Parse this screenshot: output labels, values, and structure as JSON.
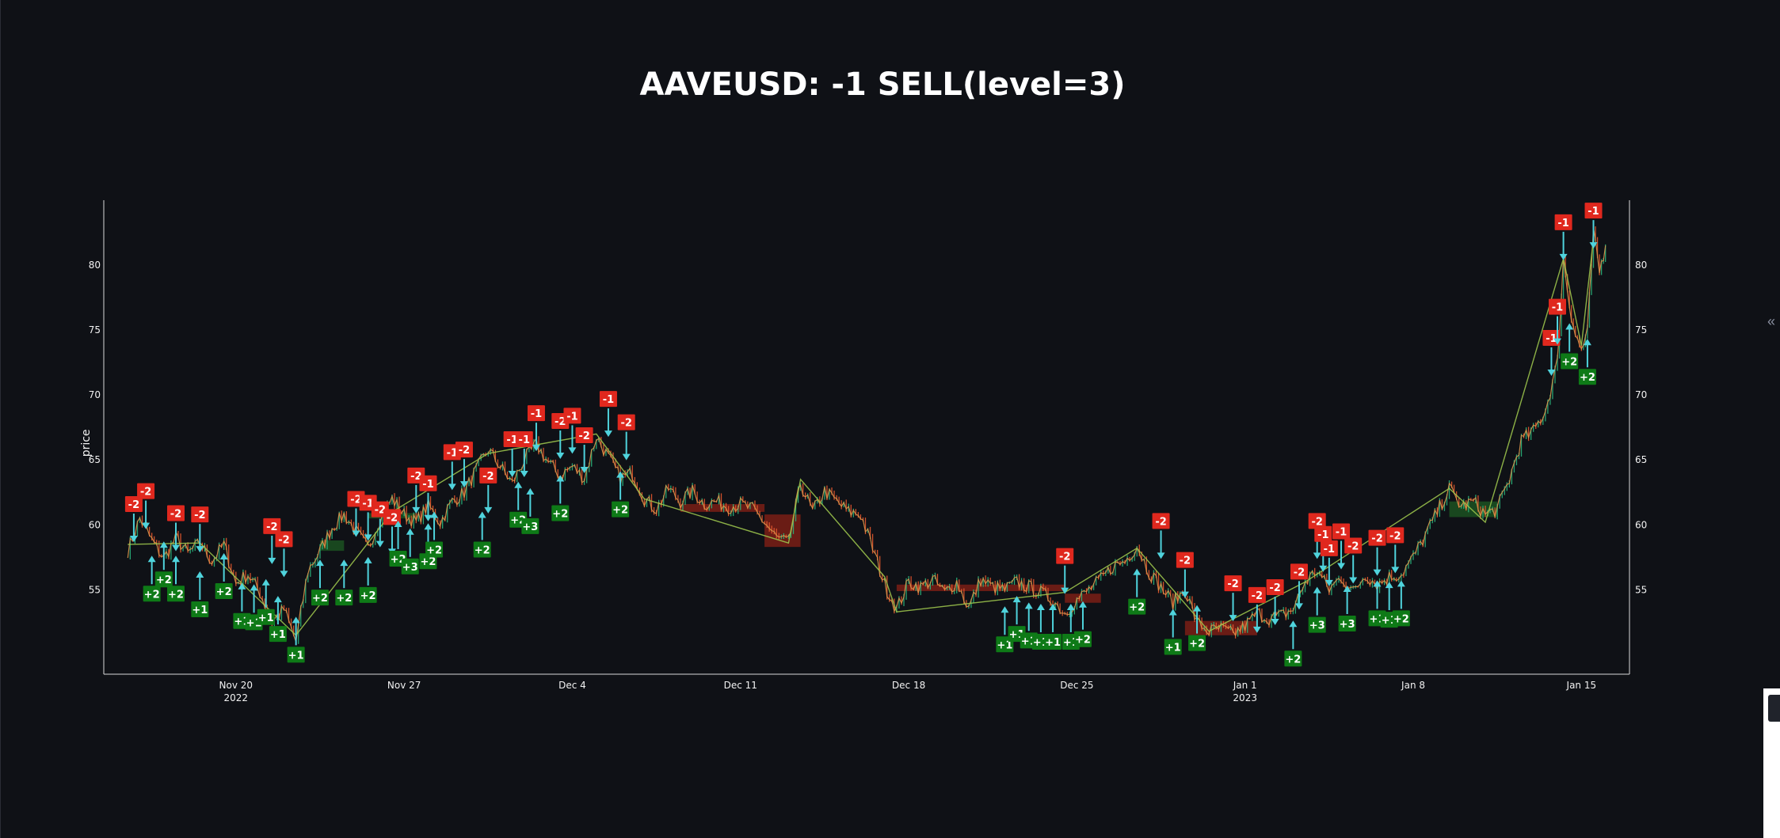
{
  "chart_data": {
    "type": "line",
    "title": "AAVEUSD: -1 SELL(level=3)",
    "ylabel": "price",
    "ylim": [
      48.5,
      85
    ],
    "y_ticks": [
      55,
      60,
      65,
      70,
      75,
      80
    ],
    "x_range": [
      "2022-11-14T12:00",
      "2023-01-17T00:00"
    ],
    "x_ticks": [
      {
        "date": "2022-11-20",
        "label": "Nov 20",
        "year": "2022"
      },
      {
        "date": "2022-11-27",
        "label": "Nov 27",
        "year": ""
      },
      {
        "date": "2022-12-04",
        "label": "Dec 4",
        "year": ""
      },
      {
        "date": "2022-12-11",
        "label": "Dec 11",
        "year": ""
      },
      {
        "date": "2022-12-18",
        "label": "Dec 18",
        "year": ""
      },
      {
        "date": "2022-12-25",
        "label": "Dec 25",
        "year": ""
      },
      {
        "date": "2023-01-01",
        "label": "Jan 1",
        "year": "2023"
      },
      {
        "date": "2023-01-08",
        "label": "Jan 8",
        "year": ""
      },
      {
        "date": "2023-01-15",
        "label": "Jan 15",
        "year": ""
      }
    ],
    "colors": {
      "up": "#2ab27b",
      "down": "#e4572e",
      "price_line": "#d9964b",
      "trend_line": "#9ac24b",
      "arrow": "#4fd3dc",
      "sell": "#e0281e",
      "buy": "#0e7a17",
      "zone_red": "#8a2015",
      "zone_green": "#1d5a23"
    },
    "price": [
      [
        "2022-11-15T12:00",
        58.0
      ],
      [
        "2022-11-16T00:00",
        60.5
      ],
      [
        "2022-11-16T12:00",
        58.8
      ],
      [
        "2022-11-17T00:00",
        57.4
      ],
      [
        "2022-11-17T12:00",
        59.0
      ],
      [
        "2022-11-18T00:00",
        57.8
      ],
      [
        "2022-11-18T12:00",
        58.6
      ],
      [
        "2022-11-19T00:00",
        57.2
      ],
      [
        "2022-11-19T12:00",
        58.5
      ],
      [
        "2022-11-20T00:00",
        55.5
      ],
      [
        "2022-11-20T12:00",
        56.2
      ],
      [
        "2022-11-21T00:00",
        54.8
      ],
      [
        "2022-11-21T12:00",
        52.5
      ],
      [
        "2022-11-22T00:00",
        53.5
      ],
      [
        "2022-11-22T12:00",
        51.0
      ],
      [
        "2022-11-23T00:00",
        56.5
      ],
      [
        "2022-11-23T12:00",
        58.0
      ],
      [
        "2022-11-24T00:00",
        59.8
      ],
      [
        "2022-11-24T12:00",
        60.8
      ],
      [
        "2022-11-25T00:00",
        59.5
      ],
      [
        "2022-11-25T12:00",
        58.2
      ],
      [
        "2022-11-26T00:00",
        60.5
      ],
      [
        "2022-11-26T12:00",
        62.0
      ],
      [
        "2022-11-27T00:00",
        60.8
      ],
      [
        "2022-11-27T12:00",
        60.2
      ],
      [
        "2022-11-28T00:00",
        61.5
      ],
      [
        "2022-11-28T12:00",
        60.2
      ],
      [
        "2022-11-29T00:00",
        61.8
      ],
      [
        "2022-11-29T12:00",
        62.5
      ],
      [
        "2022-11-30T00:00",
        64.2
      ],
      [
        "2022-11-30T12:00",
        65.8
      ],
      [
        "2022-12-01T00:00",
        64.5
      ],
      [
        "2022-12-01T12:00",
        63.2
      ],
      [
        "2022-12-02T00:00",
        65.0
      ],
      [
        "2022-12-02T12:00",
        66.2
      ],
      [
        "2022-12-03T00:00",
        64.8
      ],
      [
        "2022-12-03T12:00",
        63.8
      ],
      [
        "2022-12-04T00:00",
        64.5
      ],
      [
        "2022-12-04T12:00",
        63.6
      ],
      [
        "2022-12-05T00:00",
        66.8
      ],
      [
        "2022-12-05T12:00",
        65.2
      ],
      [
        "2022-12-06T00:00",
        63.6
      ],
      [
        "2022-12-06T12:00",
        64.0
      ],
      [
        "2022-12-07T00:00",
        62.0
      ],
      [
        "2022-12-07T12:00",
        61.2
      ],
      [
        "2022-12-08T00:00",
        62.8
      ],
      [
        "2022-12-08T12:00",
        61.8
      ],
      [
        "2022-12-09T00:00",
        62.6
      ],
      [
        "2022-12-09T12:00",
        61.6
      ],
      [
        "2022-12-10T00:00",
        61.8
      ],
      [
        "2022-12-10T12:00",
        61.4
      ],
      [
        "2022-12-11T00:00",
        61.6
      ],
      [
        "2022-12-11T12:00",
        61.2
      ],
      [
        "2022-12-12T00:00",
        60.2
      ],
      [
        "2022-12-12T12:00",
        59.0
      ],
      [
        "2022-12-13T00:00",
        58.6
      ],
      [
        "2022-12-13T12:00",
        63.2
      ],
      [
        "2022-12-14T00:00",
        61.0
      ],
      [
        "2022-12-14T12:00",
        62.6
      ],
      [
        "2022-12-15T00:00",
        61.8
      ],
      [
        "2022-12-15T12:00",
        61.0
      ],
      [
        "2022-12-16T00:00",
        60.8
      ],
      [
        "2022-12-16T12:00",
        58.2
      ],
      [
        "2022-12-17T00:00",
        55.4
      ],
      [
        "2022-12-17T12:00",
        53.5
      ],
      [
        "2022-12-18T00:00",
        55.6
      ],
      [
        "2022-12-18T12:00",
        55.2
      ],
      [
        "2022-12-19T00:00",
        55.8
      ],
      [
        "2022-12-19T12:00",
        54.8
      ],
      [
        "2022-12-20T00:00",
        55.6
      ],
      [
        "2022-12-20T12:00",
        53.6
      ],
      [
        "2022-12-21T00:00",
        55.8
      ],
      [
        "2022-12-21T12:00",
        55.2
      ],
      [
        "2022-12-22T00:00",
        55.0
      ],
      [
        "2022-12-22T12:00",
        55.6
      ],
      [
        "2022-12-23T00:00",
        55.2
      ],
      [
        "2022-12-23T12:00",
        54.8
      ],
      [
        "2022-12-24T00:00",
        54.2
      ],
      [
        "2022-12-24T12:00",
        53.2
      ],
      [
        "2022-12-25T00:00",
        54.2
      ],
      [
        "2022-12-25T12:00",
        55.0
      ],
      [
        "2022-12-26T00:00",
        55.8
      ],
      [
        "2022-12-26T12:00",
        56.8
      ],
      [
        "2022-12-27T00:00",
        57.2
      ],
      [
        "2022-12-27T12:00",
        58.4
      ],
      [
        "2022-12-28T00:00",
        56.4
      ],
      [
        "2022-12-28T12:00",
        55.2
      ],
      [
        "2022-12-29T00:00",
        54.0
      ],
      [
        "2022-12-29T12:00",
        55.0
      ],
      [
        "2022-12-30T00:00",
        52.5
      ],
      [
        "2022-12-30T12:00",
        51.8
      ],
      [
        "2022-12-31T00:00",
        52.0
      ],
      [
        "2022-12-31T12:00",
        51.6
      ],
      [
        "2023-01-01T00:00",
        52.2
      ],
      [
        "2023-01-01T12:00",
        53.2
      ],
      [
        "2023-01-02T00:00",
        52.8
      ],
      [
        "2023-01-02T12:00",
        53.0
      ],
      [
        "2023-01-03T00:00",
        53.5
      ],
      [
        "2023-01-03T12:00",
        55.6
      ],
      [
        "2023-01-04T00:00",
        56.5
      ],
      [
        "2023-01-04T12:00",
        55.0
      ],
      [
        "2023-01-05T00:00",
        56.0
      ],
      [
        "2023-01-05T12:00",
        54.8
      ],
      [
        "2023-01-06T00:00",
        56.2
      ],
      [
        "2023-01-06T12:00",
        55.4
      ],
      [
        "2023-01-07T00:00",
        56.0
      ],
      [
        "2023-01-07T12:00",
        56.2
      ],
      [
        "2023-01-08T00:00",
        57.5
      ],
      [
        "2023-01-08T12:00",
        59.2
      ],
      [
        "2023-01-09T00:00",
        61.0
      ],
      [
        "2023-01-09T12:00",
        62.8
      ],
      [
        "2023-01-10T00:00",
        61.4
      ],
      [
        "2023-01-10T12:00",
        61.8
      ],
      [
        "2023-01-11T00:00",
        60.8
      ],
      [
        "2023-01-11T12:00",
        61.2
      ],
      [
        "2023-01-12T00:00",
        63.5
      ],
      [
        "2023-01-12T12:00",
        66.5
      ],
      [
        "2023-01-13T00:00",
        67.2
      ],
      [
        "2023-01-13T12:00",
        68.8
      ],
      [
        "2023-01-14T00:00",
        72.5
      ],
      [
        "2023-01-14T06:00",
        80.5
      ],
      [
        "2023-01-14T12:00",
        77.0
      ],
      [
        "2023-01-14T18:00",
        74.6
      ],
      [
        "2023-01-15T00:00",
        73.5
      ],
      [
        "2023-01-15T06:00",
        74.8
      ],
      [
        "2023-01-15T12:00",
        82.5
      ],
      [
        "2023-01-15T18:00",
        79.5
      ],
      [
        "2023-01-16T00:00",
        81.5
      ]
    ],
    "trend": [
      [
        "2022-11-15T12:00",
        58.5
      ],
      [
        "2022-11-18T12:00",
        58.6
      ],
      [
        "2022-11-22T12:00",
        51.5
      ],
      [
        "2022-11-26T12:00",
        61.0
      ],
      [
        "2022-11-30T12:00",
        65.5
      ],
      [
        "2022-12-05T00:00",
        67.0
      ],
      [
        "2022-12-07T00:00",
        62.0
      ],
      [
        "2022-12-13T00:00",
        58.6
      ],
      [
        "2022-12-13T12:00",
        63.5
      ],
      [
        "2022-12-17T00:00",
        56.0
      ],
      [
        "2022-12-17T12:00",
        53.3
      ],
      [
        "2022-12-24T12:00",
        54.8
      ],
      [
        "2022-12-27T12:00",
        58.2
      ],
      [
        "2022-12-30T12:00",
        51.8
      ],
      [
        "2023-01-03T12:00",
        55.6
      ],
      [
        "2023-01-09T12:00",
        62.8
      ],
      [
        "2023-01-11T00:00",
        60.2
      ],
      [
        "2023-01-14T06:00",
        80.5
      ],
      [
        "2023-01-15T00:00",
        73.8
      ],
      [
        "2023-01-15T12:00",
        82.0
      ]
    ],
    "zones": [
      {
        "start": "2022-12-08T12:00",
        "end": "2022-12-12T00:00",
        "low": 61.0,
        "high": 61.6,
        "color": "red"
      },
      {
        "start": "2022-12-12T00:00",
        "end": "2022-12-13T12:00",
        "low": 58.3,
        "high": 60.8,
        "color": "red"
      },
      {
        "start": "2022-12-17T12:00",
        "end": "2022-12-24T12:00",
        "low": 54.9,
        "high": 55.4,
        "color": "red"
      },
      {
        "start": "2022-12-24T12:00",
        "end": "2022-12-26T00:00",
        "low": 54.0,
        "high": 54.7,
        "color": "red"
      },
      {
        "start": "2022-12-29T12:00",
        "end": "2023-01-01T12:00",
        "low": 51.5,
        "high": 52.6,
        "color": "red"
      },
      {
        "start": "2023-01-09T12:00",
        "end": "2023-01-11T12:00",
        "low": 60.6,
        "high": 61.8,
        "color": "green"
      },
      {
        "start": "2022-11-25T12:00",
        "end": "2022-11-27T12:00",
        "low": 60.5,
        "high": 60.9,
        "color": "green"
      },
      {
        "start": "2022-11-23T12:00",
        "end": "2022-11-24T12:00",
        "low": 58.0,
        "high": 58.8,
        "color": "green"
      }
    ],
    "sell_signals": [
      {
        "x": "2022-11-15T18:00",
        "y": 61.6,
        "label": "-2"
      },
      {
        "x": "2022-11-16T06:00",
        "y": 62.6,
        "label": "-2"
      },
      {
        "x": "2022-11-17T12:00",
        "y": 60.9,
        "label": "-2"
      },
      {
        "x": "2022-11-18T12:00",
        "y": 60.8,
        "label": "-2"
      },
      {
        "x": "2022-11-21T12:00",
        "y": 59.9,
        "label": "-2"
      },
      {
        "x": "2022-11-22T00:00",
        "y": 58.9,
        "label": "-2"
      },
      {
        "x": "2022-11-25T00:00",
        "y": 62.0,
        "label": "-2"
      },
      {
        "x": "2022-11-25T12:00",
        "y": 61.7,
        "label": "-1"
      },
      {
        "x": "2022-11-26T00:00",
        "y": 61.2,
        "label": "-2"
      },
      {
        "x": "2022-11-26T12:00",
        "y": 60.6,
        "label": "-2"
      },
      {
        "x": "2022-11-27T12:00",
        "y": 63.8,
        "label": "-2"
      },
      {
        "x": "2022-11-28T00:00",
        "y": 63.2,
        "label": "-1"
      },
      {
        "x": "2022-11-29T00:00",
        "y": 65.6,
        "label": "-1"
      },
      {
        "x": "2022-11-29T12:00",
        "y": 65.8,
        "label": "-2"
      },
      {
        "x": "2022-11-30T12:00",
        "y": 63.8,
        "label": "-2"
      },
      {
        "x": "2022-12-01T12:00",
        "y": 66.6,
        "label": "-1"
      },
      {
        "x": "2022-12-02T00:00",
        "y": 66.6,
        "label": "-1"
      },
      {
        "x": "2022-12-02T12:00",
        "y": 68.6,
        "label": "-1"
      },
      {
        "x": "2022-12-03T12:00",
        "y": 68.0,
        "label": "-2"
      },
      {
        "x": "2022-12-04T00:00",
        "y": 68.4,
        "label": "-1"
      },
      {
        "x": "2022-12-04T12:00",
        "y": 66.9,
        "label": "-2"
      },
      {
        "x": "2022-12-05T12:00",
        "y": 69.7,
        "label": "-1"
      },
      {
        "x": "2022-12-06T06:00",
        "y": 67.9,
        "label": "-2"
      },
      {
        "x": "2022-12-24T12:00",
        "y": 57.6,
        "label": "-2"
      },
      {
        "x": "2022-12-28T12:00",
        "y": 60.3,
        "label": "-2"
      },
      {
        "x": "2022-12-29T12:00",
        "y": 57.3,
        "label": "-2"
      },
      {
        "x": "2022-12-31T12:00",
        "y": 55.5,
        "label": "-2"
      },
      {
        "x": "2023-01-01T12:00",
        "y": 54.6,
        "label": "-2"
      },
      {
        "x": "2023-01-02T06:00",
        "y": 55.2,
        "label": "-2"
      },
      {
        "x": "2023-01-03T06:00",
        "y": 56.4,
        "label": "-2"
      },
      {
        "x": "2023-01-04T00:00",
        "y": 60.3,
        "label": "-2"
      },
      {
        "x": "2023-01-04T06:00",
        "y": 59.3,
        "label": "-1"
      },
      {
        "x": "2023-01-04T12:00",
        "y": 58.2,
        "label": "-1"
      },
      {
        "x": "2023-01-05T00:00",
        "y": 59.5,
        "label": "-1"
      },
      {
        "x": "2023-01-05T12:00",
        "y": 58.4,
        "label": "-2"
      },
      {
        "x": "2023-01-06T12:00",
        "y": 59.0,
        "label": "-2"
      },
      {
        "x": "2023-01-07T06:00",
        "y": 59.2,
        "label": "-2"
      },
      {
        "x": "2023-01-13T18:00",
        "y": 74.4,
        "label": "-1"
      },
      {
        "x": "2023-01-14T00:00",
        "y": 76.8,
        "label": "-1"
      },
      {
        "x": "2023-01-14T06:00",
        "y": 83.3,
        "label": "-1"
      },
      {
        "x": "2023-01-15T12:00",
        "y": 84.2,
        "label": "-1"
      }
    ],
    "buy_signals": [
      {
        "x": "2022-11-16T12:00",
        "y": 54.7,
        "label": "+2"
      },
      {
        "x": "2022-11-17T00:00",
        "y": 55.8,
        "label": "+2"
      },
      {
        "x": "2022-11-17T12:00",
        "y": 54.7,
        "label": "+2"
      },
      {
        "x": "2022-11-18T12:00",
        "y": 53.5,
        "label": "+1"
      },
      {
        "x": "2022-11-19T12:00",
        "y": 54.9,
        "label": "+2"
      },
      {
        "x": "2022-11-20T06:00",
        "y": 52.6,
        "label": "+1"
      },
      {
        "x": "2022-11-20T18:00",
        "y": 52.5,
        "label": "+1"
      },
      {
        "x": "2022-11-21T06:00",
        "y": 52.9,
        "label": "+1"
      },
      {
        "x": "2022-11-21T18:00",
        "y": 51.6,
        "label": "+1"
      },
      {
        "x": "2022-11-22T12:00",
        "y": 50.0,
        "label": "+1"
      },
      {
        "x": "2022-11-23T12:00",
        "y": 54.4,
        "label": "+2"
      },
      {
        "x": "2022-11-24T12:00",
        "y": 54.4,
        "label": "+2"
      },
      {
        "x": "2022-11-25T12:00",
        "y": 54.6,
        "label": "+2"
      },
      {
        "x": "2022-11-26T18:00",
        "y": 57.4,
        "label": "+2"
      },
      {
        "x": "2022-11-27T06:00",
        "y": 56.8,
        "label": "+3"
      },
      {
        "x": "2022-11-28T00:00",
        "y": 57.2,
        "label": "+2"
      },
      {
        "x": "2022-11-28T06:00",
        "y": 58.1,
        "label": "+2"
      },
      {
        "x": "2022-11-30T06:00",
        "y": 58.1,
        "label": "+2"
      },
      {
        "x": "2022-12-01T18:00",
        "y": 60.4,
        "label": "+2"
      },
      {
        "x": "2022-12-02T06:00",
        "y": 59.9,
        "label": "+3"
      },
      {
        "x": "2022-12-03T12:00",
        "y": 60.9,
        "label": "+2"
      },
      {
        "x": "2022-12-06T00:00",
        "y": 61.2,
        "label": "+2"
      },
      {
        "x": "2022-12-22T00:00",
        "y": 50.8,
        "label": "+1"
      },
      {
        "x": "2022-12-22T12:00",
        "y": 51.6,
        "label": "+1"
      },
      {
        "x": "2022-12-23T00:00",
        "y": 51.1,
        "label": "+1"
      },
      {
        "x": "2022-12-23T12:00",
        "y": 51.0,
        "label": "+1"
      },
      {
        "x": "2022-12-24T00:00",
        "y": 51.0,
        "label": "+1"
      },
      {
        "x": "2022-12-24T18:00",
        "y": 51.0,
        "label": "+1"
      },
      {
        "x": "2022-12-25T06:00",
        "y": 51.2,
        "label": "+2"
      },
      {
        "x": "2022-12-27T12:00",
        "y": 53.7,
        "label": "+2"
      },
      {
        "x": "2022-12-29T00:00",
        "y": 50.6,
        "label": "+1"
      },
      {
        "x": "2022-12-30T00:00",
        "y": 50.9,
        "label": "+2"
      },
      {
        "x": "2023-01-03T00:00",
        "y": 49.7,
        "label": "+2"
      },
      {
        "x": "2023-01-04T00:00",
        "y": 52.3,
        "label": "+3"
      },
      {
        "x": "2023-01-05T06:00",
        "y": 52.4,
        "label": "+3"
      },
      {
        "x": "2023-01-06T12:00",
        "y": 52.8,
        "label": "+1"
      },
      {
        "x": "2023-01-07T00:00",
        "y": 52.7,
        "label": "+1"
      },
      {
        "x": "2023-01-07T12:00",
        "y": 52.8,
        "label": "+2"
      },
      {
        "x": "2023-01-14T12:00",
        "y": 72.6,
        "label": "+2"
      },
      {
        "x": "2023-01-15T06:00",
        "y": 71.4,
        "label": "+2"
      }
    ]
  },
  "ui": {
    "collapse_glyph": "«"
  }
}
